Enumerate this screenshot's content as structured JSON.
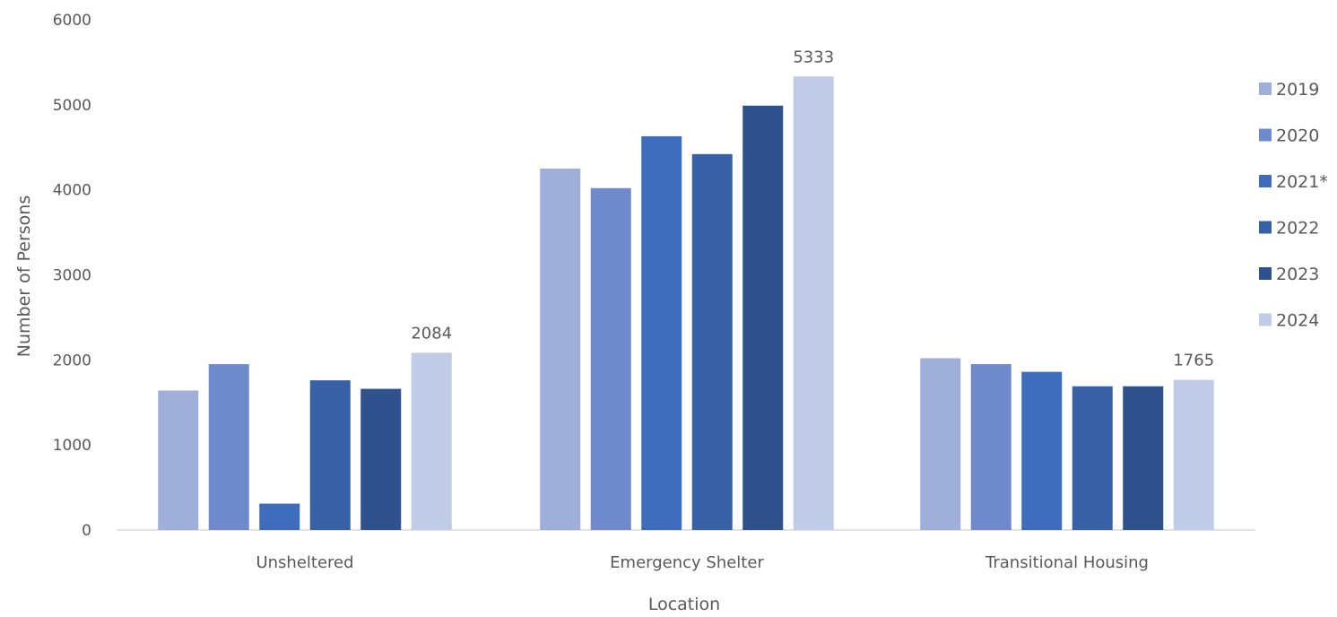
{
  "chart_data": {
    "type": "bar",
    "title": "",
    "xlabel": "Location",
    "ylabel": "Number of Persons",
    "ylim": [
      0,
      6000
    ],
    "yticks": [
      0,
      1000,
      2000,
      3000,
      4000,
      5000,
      6000
    ],
    "categories": [
      "Unsheltered",
      "Emergency Shelter",
      "Transitional Housing"
    ],
    "series": [
      {
        "name": "2019",
        "color": "#9fafd9",
        "values": [
          1640,
          4250,
          2020
        ]
      },
      {
        "name": "2020",
        "color": "#6f8acb",
        "values": [
          1950,
          4020,
          1950
        ]
      },
      {
        "name": "2021*",
        "color": "#406cbc",
        "values": [
          310,
          4630,
          1860
        ]
      },
      {
        "name": "2022",
        "color": "#3860a6",
        "values": [
          1760,
          4420,
          1690
        ]
      },
      {
        "name": "2023",
        "color": "#2f518c",
        "values": [
          1660,
          4990,
          1690
        ]
      },
      {
        "name": "2024",
        "color": "#c0cbe6",
        "values": [
          2084,
          5333,
          1765
        ]
      }
    ],
    "data_labels": [
      {
        "series": 5,
        "category": 0,
        "text": "2084"
      },
      {
        "series": 5,
        "category": 1,
        "text": "5333"
      },
      {
        "series": 5,
        "category": 2,
        "text": "1765"
      }
    ],
    "grid": false,
    "legend_position": "right"
  }
}
